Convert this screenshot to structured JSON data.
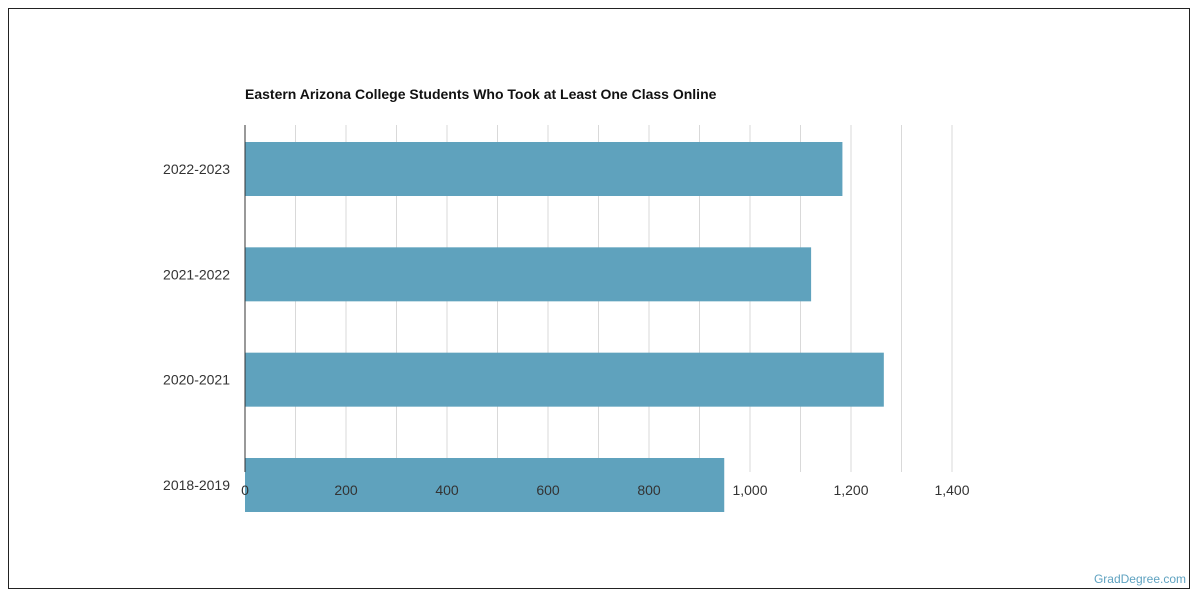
{
  "source_label": "GradDegree.com",
  "colors": {
    "bar": "#5fa2bd",
    "grid": "#d9d9d9",
    "axis": "#333333"
  },
  "chart_data": {
    "type": "bar",
    "orientation": "horizontal",
    "title": "Eastern Arizona College Students Who Took at Least One Class Online",
    "categories": [
      "2022-2023",
      "2021-2022",
      "2020-2021",
      "2018-2019"
    ],
    "values": [
      1183,
      1121,
      1265,
      949
    ],
    "xlim": [
      0,
      1400
    ],
    "x_ticks": [
      0,
      200,
      400,
      600,
      800,
      1000,
      1200,
      1400
    ],
    "x_tick_labels": [
      "0",
      "200",
      "400",
      "600",
      "800",
      "1,000",
      "1,200",
      "1,400"
    ],
    "xlabel": "",
    "ylabel": "",
    "grid": true
  }
}
